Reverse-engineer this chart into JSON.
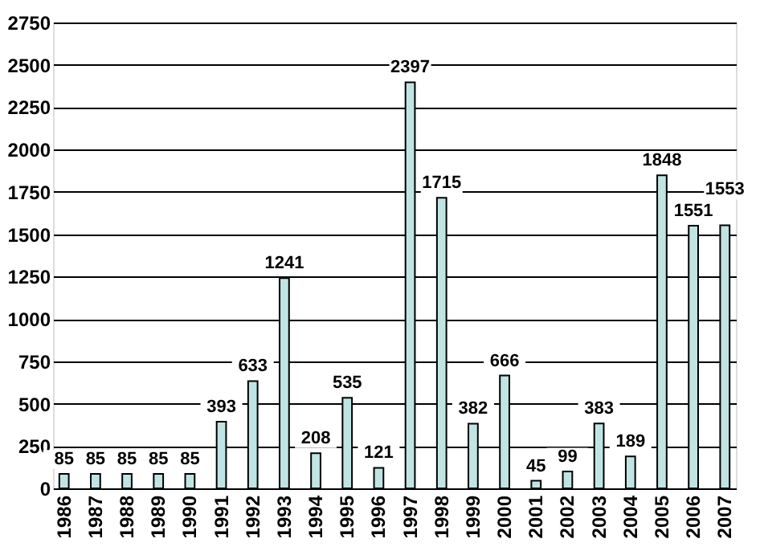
{
  "chart_data": {
    "type": "bar",
    "categories": [
      "1986",
      "1987",
      "1988",
      "1989",
      "1990",
      "1991",
      "1992",
      "1993",
      "1994",
      "1995",
      "1996",
      "1997",
      "1998",
      "1999",
      "2000",
      "2001",
      "2002",
      "2003",
      "2004",
      "2005",
      "2006",
      "2007"
    ],
    "values": [
      85,
      85,
      85,
      85,
      85,
      393,
      633,
      1241,
      208,
      535,
      121,
      2397,
      1715,
      382,
      666,
      45,
      99,
      383,
      189,
      1848,
      1551,
      1553
    ],
    "color": "#c0e4e4",
    "ylim": [
      0,
      2750
    ],
    "yticks": [
      0,
      250,
      500,
      750,
      1000,
      1250,
      1500,
      1750,
      2000,
      2250,
      2500,
      2750
    ],
    "grid": "y",
    "data_labels": true
  }
}
